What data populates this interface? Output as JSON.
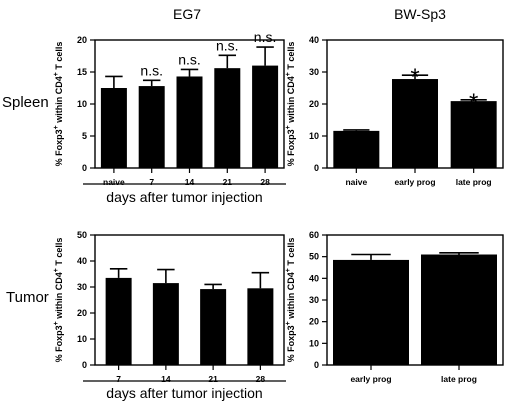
{
  "figure": {
    "column_titles": [
      "EG7",
      "BW-Sp3"
    ],
    "row_labels": [
      "Spleen",
      "Tumor"
    ]
  },
  "chart_data": [
    {
      "id": "eg7-spleen",
      "type": "bar",
      "title": "",
      "ylabel_parts": [
        "% Foxp3",
        "+",
        " within CD4",
        "+",
        " T cells"
      ],
      "xlabel": "days after tumor injection",
      "categories": [
        "naive",
        "7",
        "14",
        "21",
        "28"
      ],
      "values": [
        12.5,
        12.8,
        14.3,
        15.6,
        16.0
      ],
      "errors": [
        1.8,
        0.9,
        1.1,
        2.0,
        2.9
      ],
      "annotations": [
        "",
        "n.s.",
        "n.s.",
        "n.s.",
        "n.s."
      ],
      "ylim": [
        0,
        20
      ],
      "yticks": [
        0,
        5,
        10,
        15,
        20
      ],
      "color": "#000000"
    },
    {
      "id": "bw-spleen",
      "type": "bar",
      "title": "",
      "ylabel_parts": [
        "% Foxp3",
        "+",
        " within CD4",
        "+",
        " T cells"
      ],
      "xlabel": "",
      "categories": [
        "naive",
        "early prog",
        "late prog"
      ],
      "values": [
        11.6,
        27.8,
        20.9
      ],
      "errors": [
        0.3,
        1.2,
        0.4
      ],
      "annotations": [
        "",
        "*",
        "*"
      ],
      "ylim": [
        0,
        40
      ],
      "yticks": [
        0,
        10,
        20,
        30,
        40
      ],
      "color": "#000000"
    },
    {
      "id": "eg7-tumor",
      "type": "bar",
      "title": "",
      "ylabel_parts": [
        "% Foxp3",
        "+",
        " within CD4",
        "+",
        " T cells"
      ],
      "xlabel": "days after tumor injection",
      "categories": [
        "7",
        "14",
        "21",
        "28"
      ],
      "values": [
        33.5,
        31.5,
        29.2,
        29.5
      ],
      "errors": [
        3.5,
        5.2,
        1.8,
        6.0
      ],
      "annotations": [
        "",
        "",
        "",
        ""
      ],
      "ylim": [
        0,
        50
      ],
      "yticks": [
        0,
        10,
        20,
        30,
        40,
        50
      ],
      "color": "#000000"
    },
    {
      "id": "bw-tumor",
      "type": "bar",
      "title": "",
      "ylabel_parts": [
        "% Foxp3",
        "+",
        " within CD4",
        "+",
        " T cells"
      ],
      "xlabel": "",
      "categories": [
        "early prog",
        "late prog"
      ],
      "values": [
        48.5,
        51.0
      ],
      "errors": [
        2.5,
        0.8
      ],
      "annotations": [
        "",
        ""
      ],
      "ylim": [
        0,
        60
      ],
      "yticks": [
        0,
        10,
        20,
        30,
        40,
        50,
        60
      ],
      "color": "#000000"
    }
  ]
}
